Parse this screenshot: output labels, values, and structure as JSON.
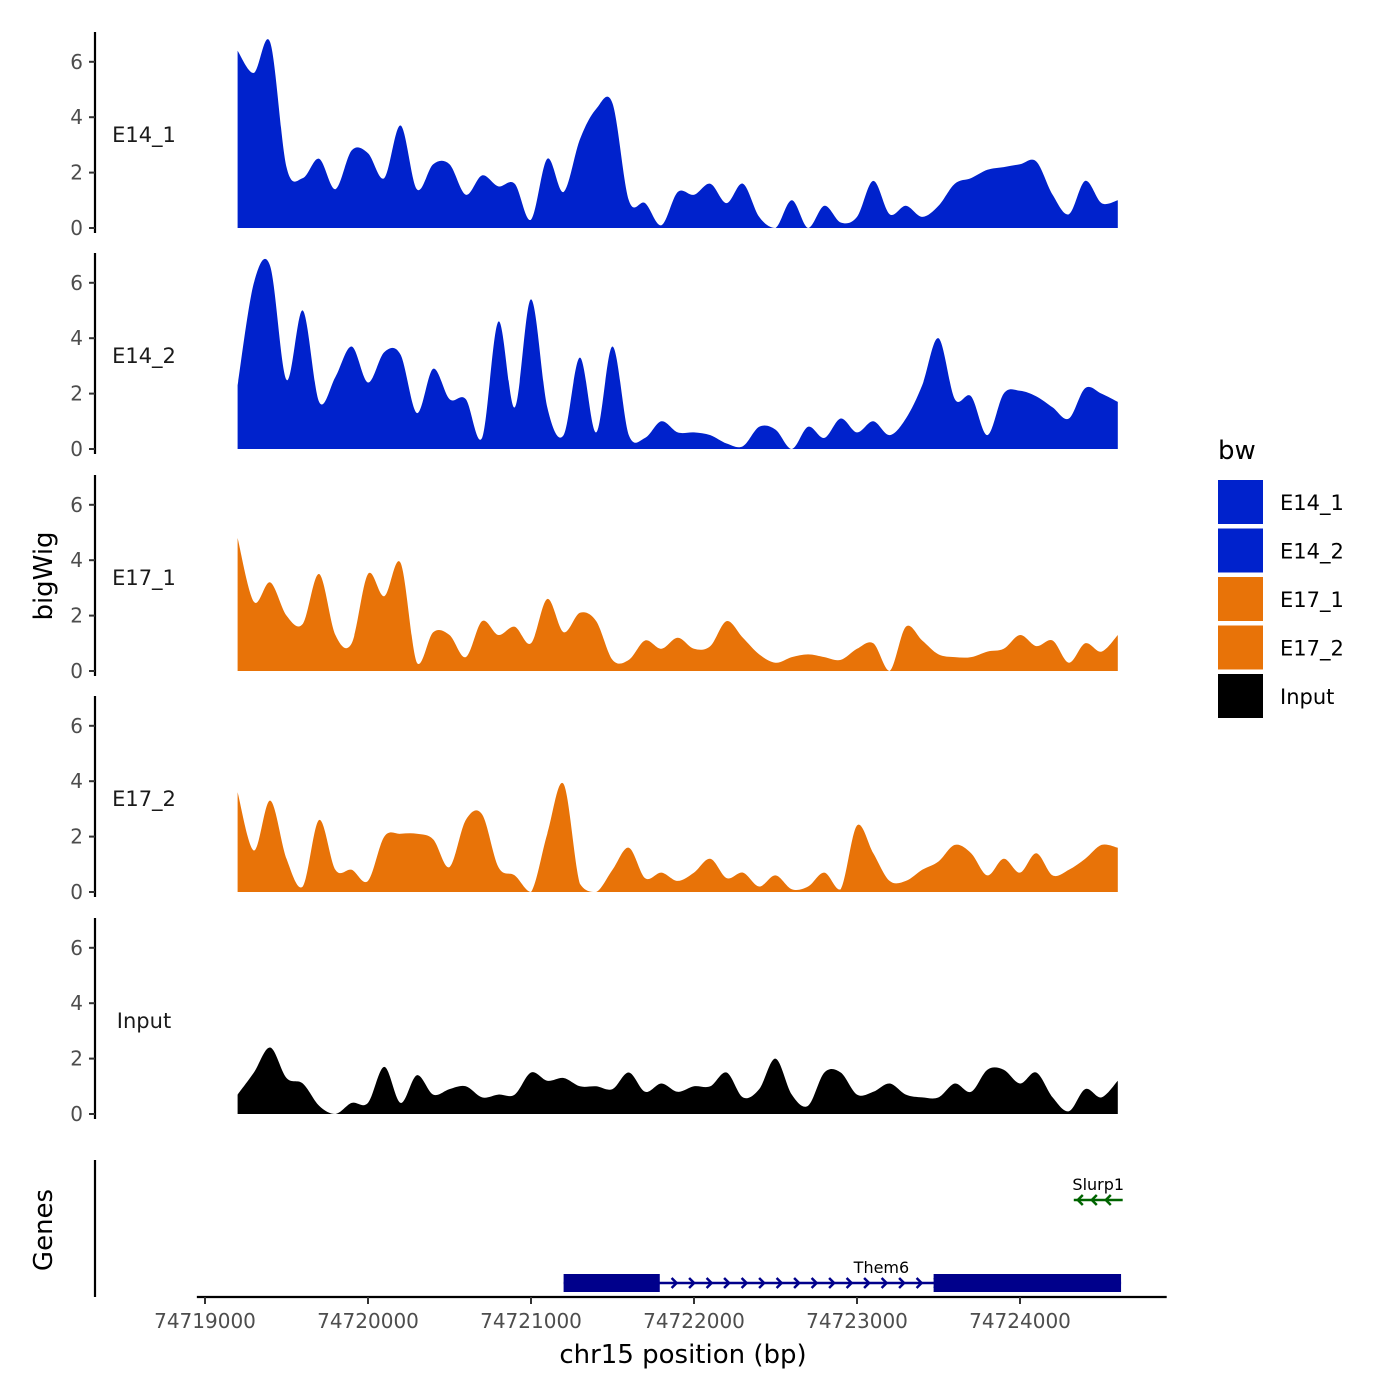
{
  "chart_data": {
    "type": "area",
    "ylabel": "bigWig",
    "xlabel": "chr15 position (bp)",
    "genes_label": "Genes",
    "xlim": [
      74718950,
      74724900
    ],
    "ylim": [
      0,
      7
    ],
    "yticks": [
      0,
      2,
      4,
      6
    ],
    "xticks": [
      74719000,
      74720000,
      74721000,
      74722000,
      74723000,
      74724000
    ],
    "xtick_labels": [
      "74719000",
      "74720000",
      "74721000",
      "74722000",
      "74723000",
      "74724000"
    ],
    "legend": {
      "title": "bw",
      "position": "right",
      "entries": [
        {
          "label": "E14_1",
          "color": "#0022CC"
        },
        {
          "label": "E14_2",
          "color": "#0022CC"
        },
        {
          "label": "E17_1",
          "color": "#E87308"
        },
        {
          "label": "E17_2",
          "color": "#E87308"
        },
        {
          "label": "Input",
          "color": "#000000"
        }
      ]
    },
    "x": [
      74719200,
      74719300,
      74719400,
      74719500,
      74719600,
      74719700,
      74719800,
      74719900,
      74720000,
      74720100,
      74720200,
      74720300,
      74720400,
      74720500,
      74720600,
      74720700,
      74720800,
      74720900,
      74721000,
      74721100,
      74721200,
      74721300,
      74721400,
      74721500,
      74721600,
      74721700,
      74721800,
      74721900,
      74722000,
      74722100,
      74722200,
      74722300,
      74722400,
      74722500,
      74722600,
      74722700,
      74722800,
      74722900,
      74723000,
      74723100,
      74723200,
      74723300,
      74723400,
      74723500,
      74723600,
      74723700,
      74723800,
      74723900,
      74724000,
      74724100,
      74724200,
      74724300,
      74724400,
      74724500,
      74724600
    ],
    "series": [
      {
        "name": "E14_1",
        "color": "#0022CC",
        "values": [
          6.4,
          5.6,
          6.7,
          2.2,
          1.8,
          2.5,
          1.4,
          2.8,
          2.7,
          1.8,
          3.7,
          1.4,
          2.3,
          2.3,
          1.2,
          1.9,
          1.5,
          1.6,
          0.3,
          2.5,
          1.3,
          3.2,
          4.3,
          4.5,
          1.0,
          0.9,
          0.1,
          1.3,
          1.2,
          1.6,
          0.9,
          1.6,
          0.4,
          0.0,
          1.0,
          0.0,
          0.8,
          0.2,
          0.4,
          1.7,
          0.5,
          0.8,
          0.4,
          0.8,
          1.6,
          1.8,
          2.1,
          2.2,
          2.3,
          2.4,
          1.2,
          0.5,
          1.7,
          0.9,
          1.0
        ]
      },
      {
        "name": "E14_2",
        "color": "#0022CC",
        "values": [
          2.3,
          6.0,
          6.6,
          2.5,
          5.0,
          1.7,
          2.6,
          3.7,
          2.4,
          3.5,
          3.4,
          1.3,
          2.9,
          1.8,
          1.8,
          0.4,
          4.6,
          1.5,
          5.4,
          1.5,
          0.5,
          3.3,
          0.6,
          3.7,
          0.5,
          0.4,
          1.0,
          0.6,
          0.6,
          0.5,
          0.2,
          0.1,
          0.8,
          0.7,
          0.0,
          0.8,
          0.4,
          1.1,
          0.6,
          1.0,
          0.5,
          1.1,
          2.3,
          4.0,
          1.8,
          1.9,
          0.5,
          2.0,
          2.1,
          1.9,
          1.5,
          1.1,
          2.2,
          2.0,
          1.7
        ]
      },
      {
        "name": "E17_1",
        "color": "#E87308",
        "values": [
          4.8,
          2.5,
          3.2,
          2.0,
          1.7,
          3.5,
          1.3,
          1.0,
          3.5,
          2.7,
          3.9,
          0.3,
          1.4,
          1.3,
          0.5,
          1.8,
          1.3,
          1.6,
          1.0,
          2.6,
          1.4,
          2.1,
          1.8,
          0.4,
          0.4,
          1.1,
          0.8,
          1.2,
          0.8,
          0.9,
          1.8,
          1.2,
          0.6,
          0.3,
          0.5,
          0.6,
          0.5,
          0.4,
          0.8,
          1.0,
          0.0,
          1.6,
          1.1,
          0.6,
          0.5,
          0.5,
          0.7,
          0.8,
          1.3,
          0.9,
          1.1,
          0.3,
          1.0,
          0.7,
          1.3
        ]
      },
      {
        "name": "E17_2",
        "color": "#E87308",
        "values": [
          3.6,
          1.5,
          3.3,
          1.2,
          0.2,
          2.6,
          0.8,
          0.8,
          0.4,
          2.0,
          2.1,
          2.1,
          1.9,
          0.9,
          2.6,
          2.8,
          0.9,
          0.6,
          0.0,
          2.1,
          3.9,
          0.3,
          0.0,
          0.8,
          1.6,
          0.5,
          0.7,
          0.4,
          0.7,
          1.2,
          0.5,
          0.7,
          0.2,
          0.6,
          0.1,
          0.2,
          0.7,
          0.1,
          2.4,
          1.4,
          0.4,
          0.4,
          0.8,
          1.1,
          1.7,
          1.4,
          0.6,
          1.2,
          0.7,
          1.4,
          0.6,
          0.8,
          1.2,
          1.7,
          1.6
        ]
      },
      {
        "name": "Input",
        "color": "#000000",
        "values": [
          0.7,
          1.5,
          2.4,
          1.3,
          1.1,
          0.3,
          0.0,
          0.4,
          0.4,
          1.7,
          0.4,
          1.4,
          0.7,
          0.9,
          1.0,
          0.6,
          0.7,
          0.7,
          1.5,
          1.2,
          1.3,
          1.0,
          1.0,
          0.9,
          1.5,
          0.8,
          1.1,
          0.8,
          1.0,
          1.0,
          1.5,
          0.6,
          0.9,
          2.0,
          0.7,
          0.3,
          1.5,
          1.5,
          0.7,
          0.8,
          1.1,
          0.7,
          0.6,
          0.6,
          1.1,
          0.8,
          1.6,
          1.6,
          1.1,
          1.5,
          0.6,
          0.1,
          0.9,
          0.6,
          1.2
        ]
      }
    ],
    "genes": [
      {
        "name": "Them6",
        "start": 74721200,
        "end": 74724620,
        "strand": "+",
        "color": "#00008B",
        "exons": [
          [
            74721200,
            74721790
          ],
          [
            74723470,
            74724620
          ]
        ],
        "row": 0
      },
      {
        "name": "Slurp1",
        "start": 74724330,
        "end": 74724630,
        "strand": "-",
        "color": "#006400",
        "exons": [],
        "row": 1
      }
    ]
  }
}
